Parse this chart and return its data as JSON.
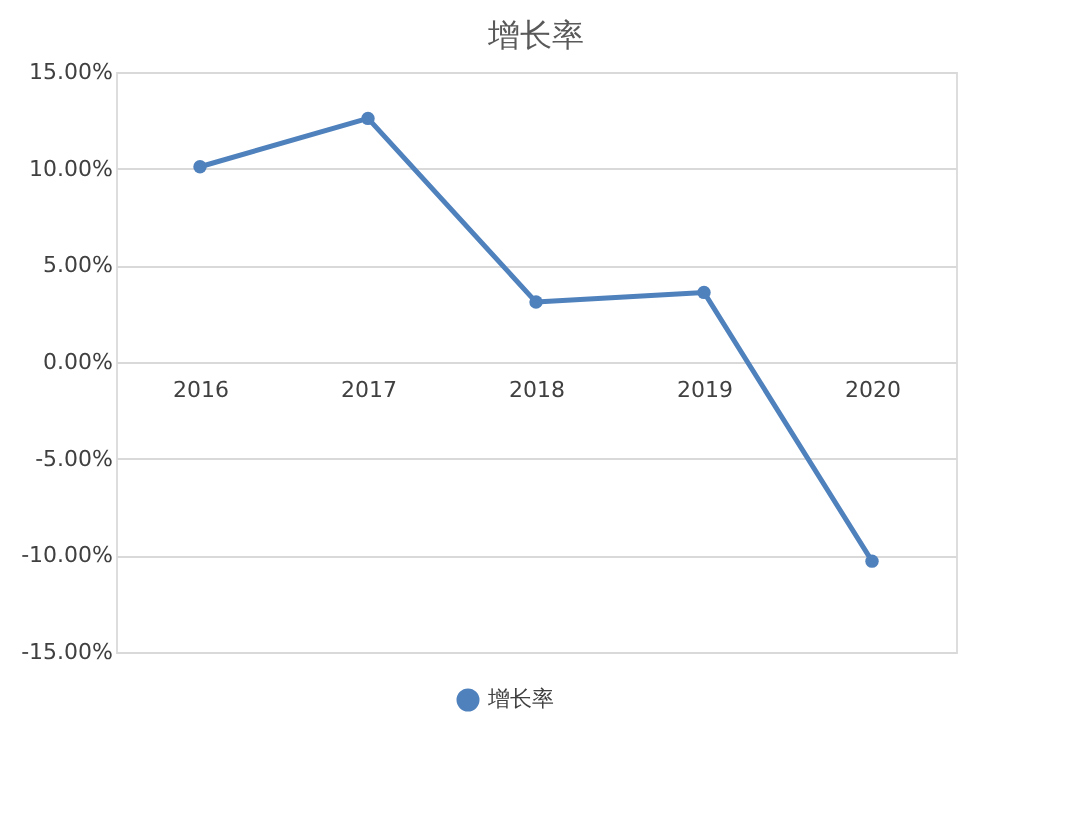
{
  "chart_data": {
    "type": "line",
    "title": "增长率",
    "categories": [
      "2016",
      "2017",
      "2018",
      "2019",
      "2020"
    ],
    "series": [
      {
        "name": "增长率",
        "color": "#4f81bd",
        "values": [
          10.1,
          12.6,
          3.1,
          3.6,
          -10.3
        ]
      }
    ],
    "ylim": [
      -15,
      15
    ],
    "yticks": [
      {
        "value": -15,
        "label": "-15.00%"
      },
      {
        "value": -10,
        "label": "-10.00%"
      },
      {
        "value": -5,
        "label": "-5.00%"
      },
      {
        "value": 0,
        "label": "0.00%"
      },
      {
        "value": 5,
        "label": "5.00%"
      },
      {
        "value": 10,
        "label": "10.00%"
      },
      {
        "value": 15,
        "label": "15.00%"
      }
    ],
    "grid": "y",
    "legend": "bottom",
    "marker": "circle",
    "line_style": "solid"
  }
}
